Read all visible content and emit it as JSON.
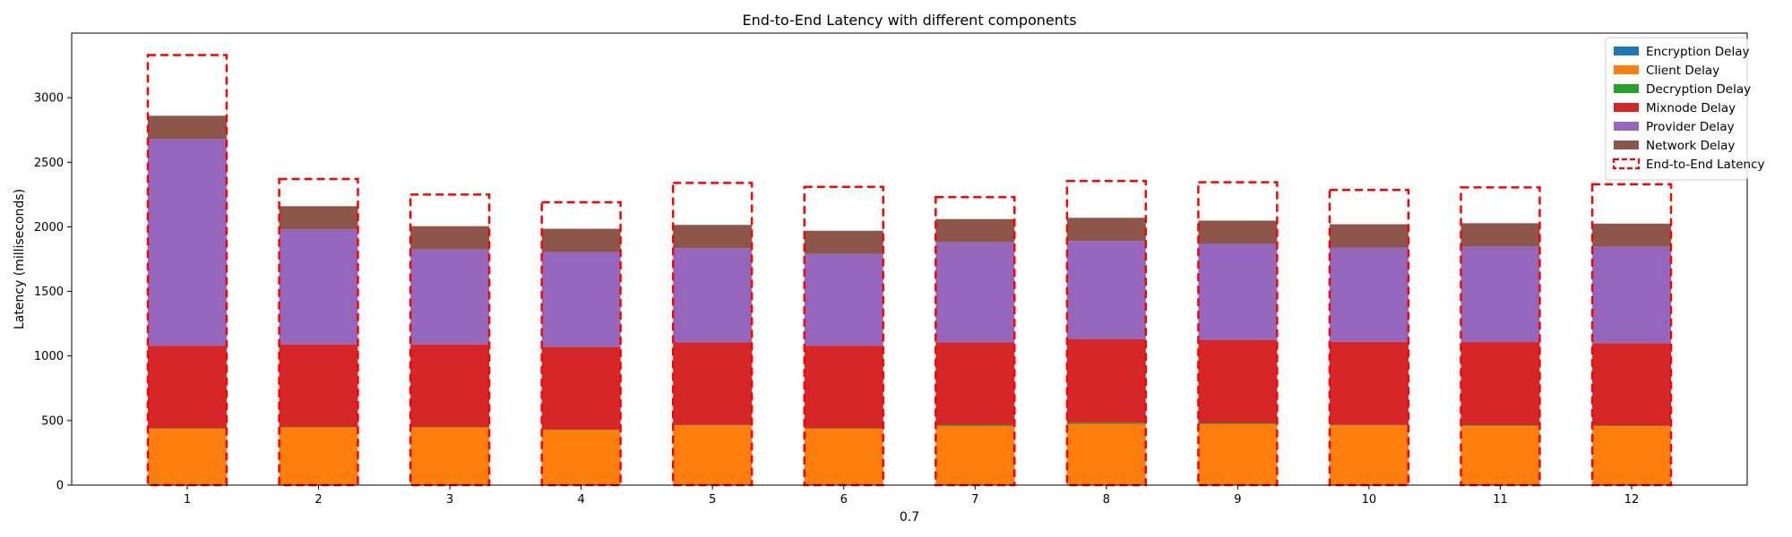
{
  "chart_data": {
    "type": "bar",
    "stacked": true,
    "title": "End-to-End Latency with different components",
    "xlabel": "0.7",
    "ylabel": "Latency (milliseconds)",
    "ylim": [
      0,
      3500
    ],
    "yticks": [
      0,
      500,
      1000,
      1500,
      2000,
      2500,
      3000
    ],
    "categories": [
      "1",
      "2",
      "3",
      "4",
      "5",
      "6",
      "7",
      "8",
      "9",
      "10",
      "11",
      "12"
    ],
    "grid": false,
    "legend_position": "top-right",
    "series": [
      {
        "name": "Encryption Delay",
        "color": "#1f77b4",
        "values": [
          2,
          2,
          2,
          2,
          2,
          2,
          2,
          2,
          2,
          2,
          2,
          2
        ]
      },
      {
        "name": "Client Delay",
        "color": "#ff7f0e",
        "values": [
          435,
          445,
          445,
          425,
          460,
          435,
          455,
          470,
          470,
          460,
          455,
          455
        ]
      },
      {
        "name": "Decryption Delay",
        "color": "#2ca02c",
        "values": [
          3,
          3,
          3,
          3,
          3,
          3,
          8,
          8,
          6,
          3,
          6,
          3
        ]
      },
      {
        "name": "Mixnode Delay",
        "color": "#d62728",
        "values": [
          640,
          640,
          640,
          640,
          640,
          640,
          640,
          650,
          645,
          645,
          645,
          640
        ]
      },
      {
        "name": "Provider Delay",
        "color": "#9467bd",
        "values": [
          1600,
          890,
          735,
          735,
          730,
          710,
          775,
          760,
          745,
          730,
          740,
          745
        ]
      },
      {
        "name": "Network Delay",
        "color": "#8c564b",
        "values": [
          180,
          180,
          180,
          180,
          180,
          180,
          180,
          180,
          180,
          180,
          180,
          180
        ]
      }
    ],
    "end_to_end": {
      "name": "End-to-End Latency",
      "color": "#ff0000",
      "values": [
        3330,
        2370,
        2250,
        2190,
        2340,
        2310,
        2230,
        2355,
        2345,
        2285,
        2305,
        2330
      ]
    }
  }
}
